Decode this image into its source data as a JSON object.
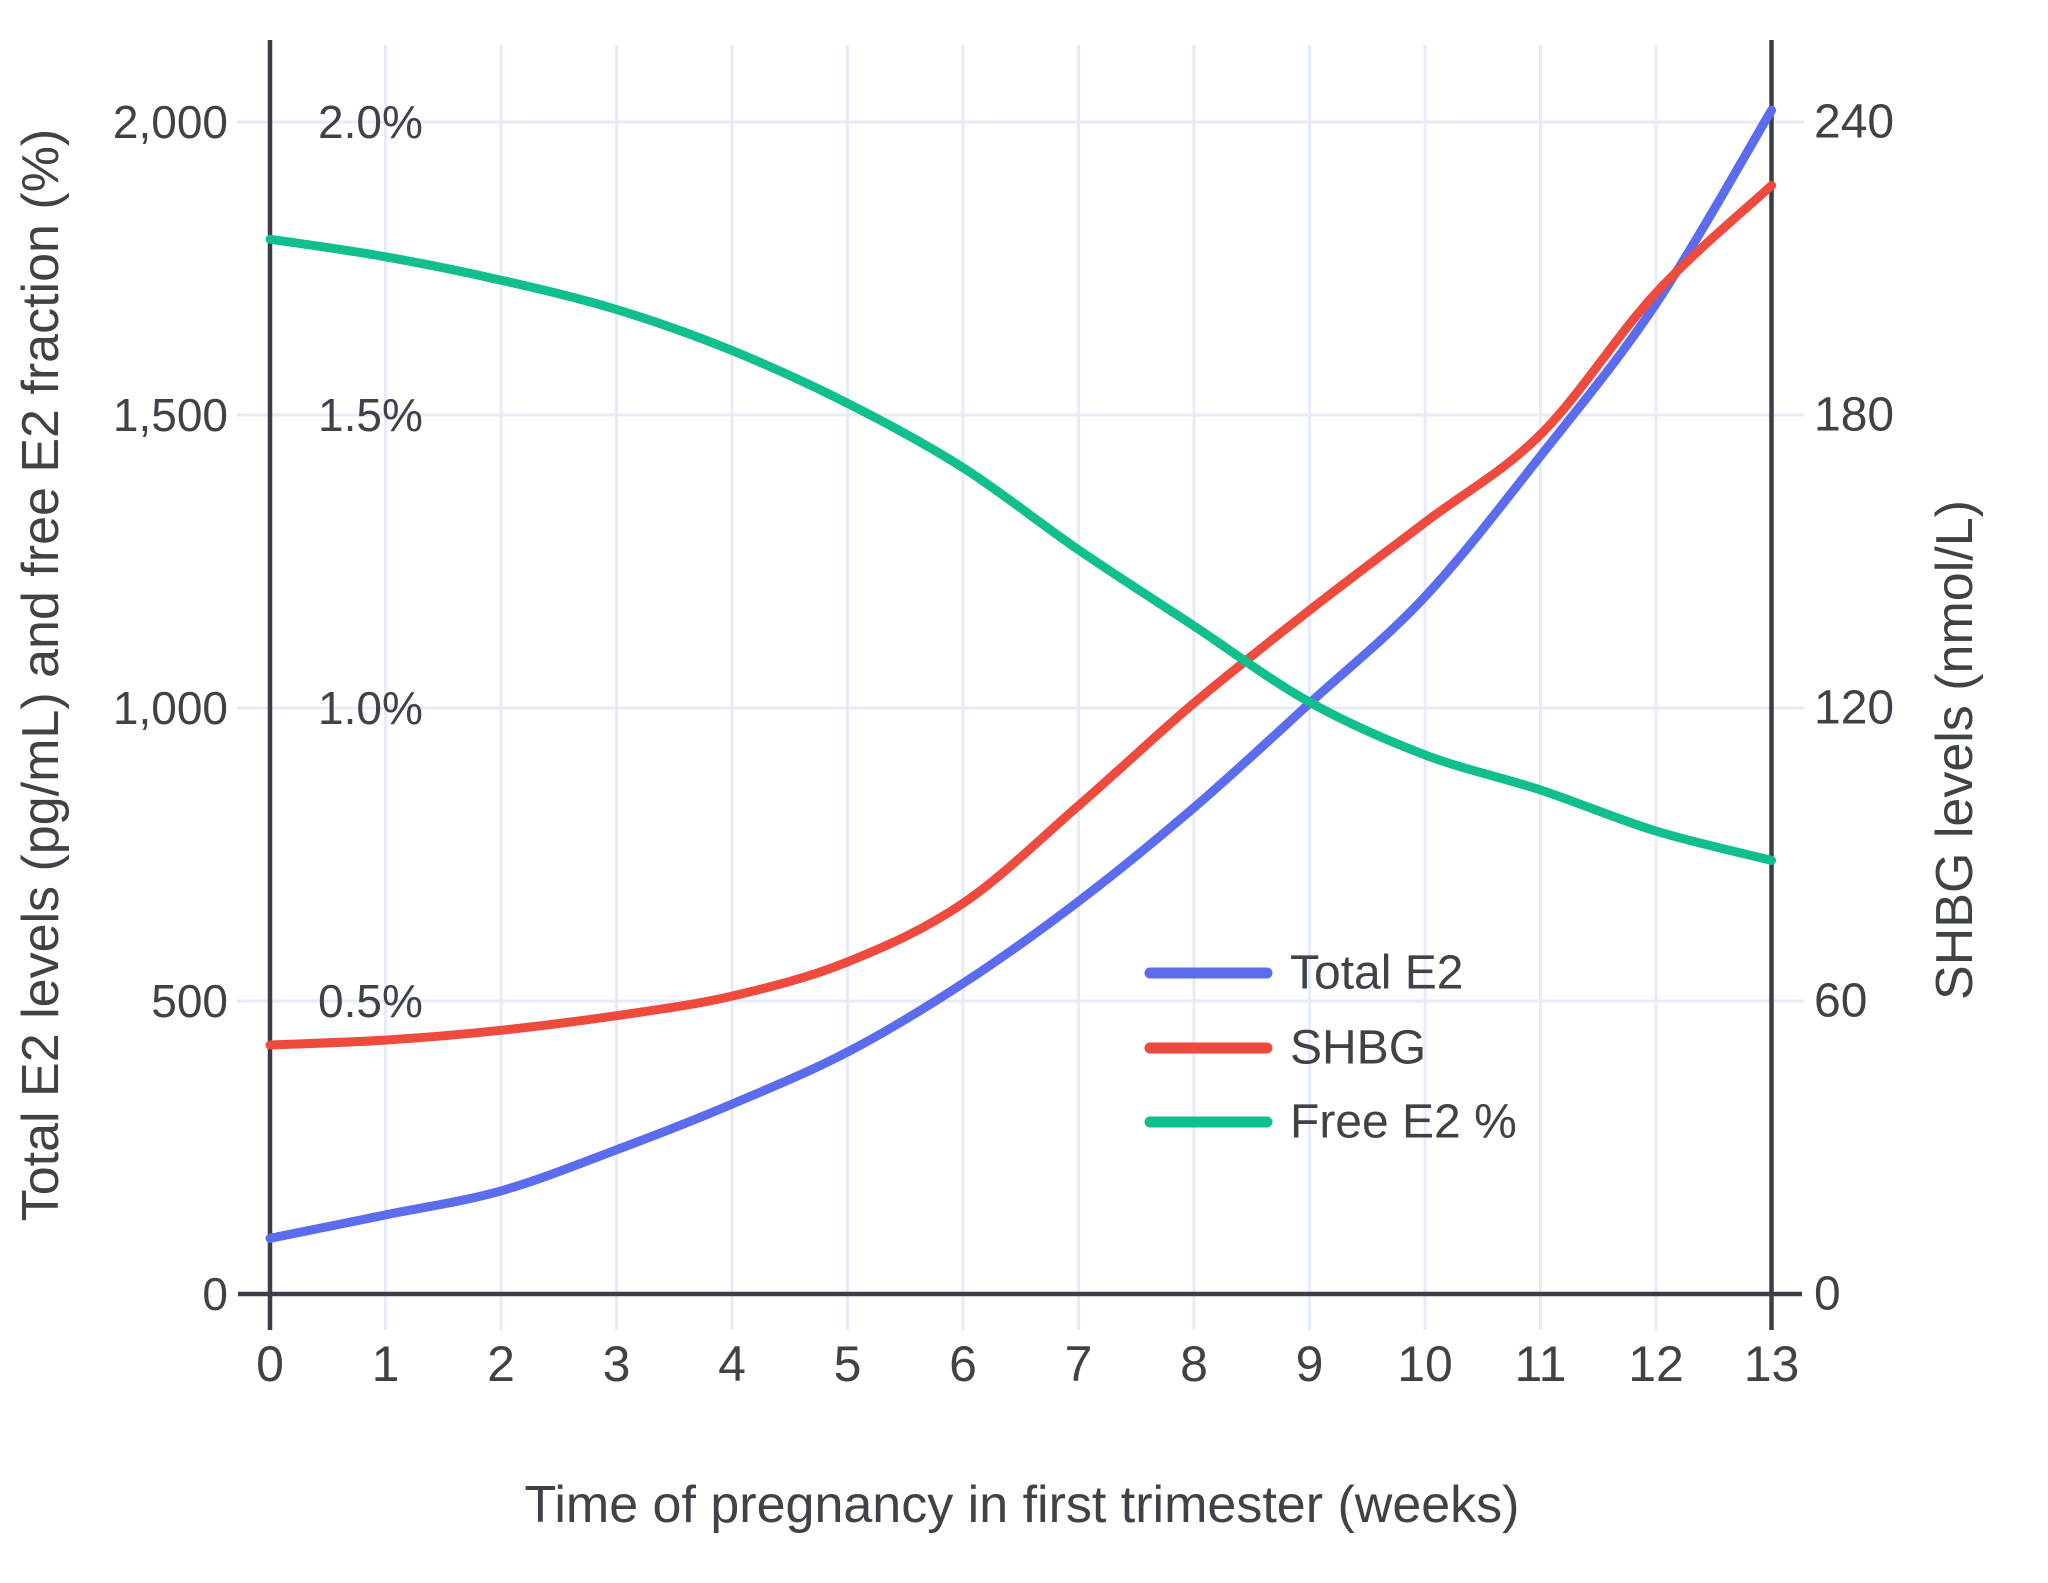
{
  "page": {
    "background": "#ffffff"
  },
  "chart_data": {
    "type": "line",
    "title": "",
    "xlabel": "Time of pregnancy in first trimester (weeks)",
    "ylabel_left": "Total E2 levels (pg/mL) and free E2 fraction (%)",
    "ylabel_right": "SHBG levels (nmol/L)",
    "x": [
      0,
      1,
      2,
      3,
      4,
      5,
      6,
      7,
      8,
      9,
      10,
      11,
      12,
      13
    ],
    "x_tick_labels": [
      "0",
      "1",
      "2",
      "3",
      "4",
      "5",
      "6",
      "7",
      "8",
      "9",
      "10",
      "11",
      "12",
      "13"
    ],
    "left_axis": {
      "tick_labels": [
        "0",
        "500",
        "1,000",
        "1,500",
        "2,000"
      ],
      "tick_values": [
        0,
        500,
        1000,
        1500,
        2000
      ],
      "range": [
        0,
        2140
      ]
    },
    "percent_axis": {
      "tick_labels": [
        "0.5%",
        "1.0%",
        "1.5%",
        "2.0%"
      ],
      "tick_values": [
        0.5,
        1.0,
        1.5,
        2.0
      ]
    },
    "right_axis": {
      "tick_labels": [
        "0",
        "60",
        "120",
        "180",
        "240"
      ],
      "tick_values": [
        0,
        60,
        120,
        180,
        240
      ],
      "range": [
        0,
        257
      ]
    },
    "grid": true,
    "legend_position": "inside-right",
    "series": [
      {
        "name": "Total E2",
        "unit": "pg/mL",
        "axis": "left",
        "color": "#5b6cee",
        "values": [
          95,
          135,
          176,
          246,
          324,
          413,
          530,
          670,
          830,
          1008,
          1190,
          1430,
          1690,
          2020
        ]
      },
      {
        "name": "SHBG",
        "unit": "nmol/L",
        "axis": "right",
        "color": "#ee4a3d",
        "values": [
          51,
          52,
          54,
          57,
          61,
          68,
          80,
          100,
          121,
          140,
          158,
          176,
          205,
          227
        ]
      },
      {
        "name": "Free E2 %",
        "unit": "%",
        "axis": "percent",
        "color": "#10bf8d",
        "values": [
          1.8,
          1.77,
          1.73,
          1.68,
          1.61,
          1.52,
          1.41,
          1.27,
          1.14,
          1.01,
          0.92,
          0.86,
          0.79,
          0.74
        ]
      }
    ],
    "colors": {
      "grid": "#e7ebf7",
      "axis": "#3b3f45",
      "text": "#3f4246"
    }
  },
  "legend": {
    "items": [
      {
        "label": "Total E2",
        "color": "#5b6cee"
      },
      {
        "label": "SHBG",
        "color": "#ee4a3d"
      },
      {
        "label": "Free E2 %",
        "color": "#10bf8d"
      }
    ]
  }
}
